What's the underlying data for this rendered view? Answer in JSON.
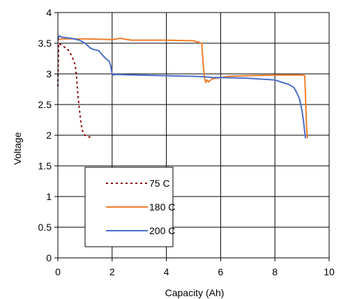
{
  "chart_data": {
    "type": "line",
    "title": "",
    "xlabel": "Capacity (Ah)",
    "ylabel": "Voltage",
    "xlim": [
      0,
      10
    ],
    "ylim": [
      0,
      4
    ],
    "xticks": [
      "0",
      "2",
      "4",
      "6",
      "8",
      "10"
    ],
    "yticks": [
      "0",
      "0.5",
      "1",
      "1.5",
      "2",
      "2.5",
      "3",
      "3.5",
      "4"
    ],
    "grid": true,
    "legend_position": "lower-left",
    "series": [
      {
        "name": "75 C",
        "color": "#8B0000",
        "style": "dotted",
        "x": [
          0.0,
          0.03,
          0.1,
          0.2,
          0.3,
          0.4,
          0.5,
          0.6,
          0.65,
          0.7,
          0.72,
          0.75,
          0.8,
          0.85,
          0.9,
          1.0,
          1.1,
          1.2
        ],
        "y": [
          2.8,
          3.5,
          3.48,
          3.45,
          3.42,
          3.38,
          3.3,
          3.2,
          3.1,
          2.9,
          2.75,
          2.6,
          2.4,
          2.2,
          2.08,
          2.0,
          1.97,
          1.97
        ]
      },
      {
        "name": "180 C",
        "color": "#F07C2A",
        "style": "solid",
        "x": [
          0.0,
          0.1,
          0.4,
          1.0,
          2.0,
          2.3,
          2.7,
          3.0,
          4.0,
          5.0,
          5.3,
          5.35,
          5.4,
          5.45,
          5.5,
          5.55,
          5.7,
          6.0,
          6.3,
          7.0,
          8.0,
          8.8,
          9.0,
          9.1,
          9.13,
          9.17,
          9.2
        ],
        "y": [
          3.55,
          3.57,
          3.57,
          3.57,
          3.56,
          3.58,
          3.55,
          3.55,
          3.55,
          3.54,
          3.5,
          3.2,
          2.95,
          2.86,
          2.9,
          2.87,
          2.92,
          2.94,
          2.96,
          2.97,
          2.98,
          2.98,
          2.98,
          2.97,
          2.6,
          2.1,
          1.95
        ]
      },
      {
        "name": "200 C",
        "color": "#4A6EC9",
        "style": "solid",
        "x": [
          0.0,
          0.05,
          0.15,
          0.5,
          0.8,
          1.0,
          1.2,
          1.3,
          1.5,
          1.6,
          1.7,
          1.8,
          1.9,
          1.95,
          2.0,
          2.05,
          2.1,
          3.0,
          4.0,
          5.0,
          5.5,
          5.7,
          6.0,
          7.0,
          8.0,
          8.5,
          8.7,
          8.8,
          8.9,
          8.95,
          9.0,
          9.05,
          9.1,
          9.13
        ],
        "y": [
          3.55,
          3.62,
          3.6,
          3.58,
          3.55,
          3.5,
          3.42,
          3.4,
          3.38,
          3.33,
          3.28,
          3.24,
          3.2,
          3.12,
          3.0,
          2.98,
          2.99,
          2.98,
          2.97,
          2.96,
          2.95,
          2.94,
          2.94,
          2.93,
          2.9,
          2.83,
          2.78,
          2.7,
          2.6,
          2.5,
          2.4,
          2.25,
          2.05,
          1.95
        ]
      }
    ]
  }
}
